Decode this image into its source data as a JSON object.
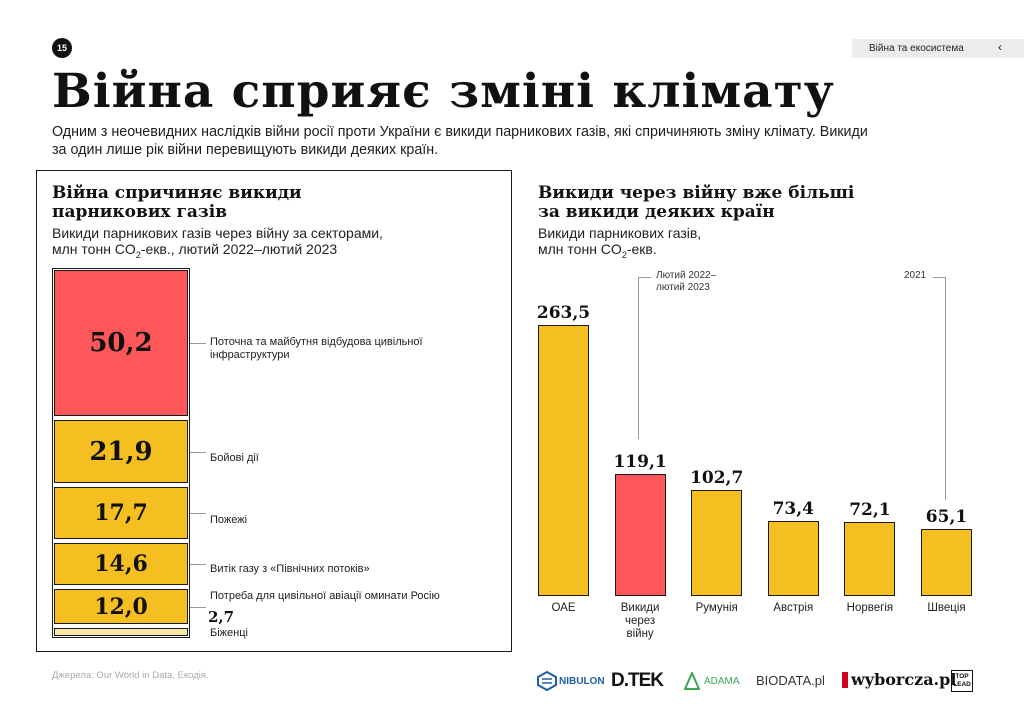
{
  "header": {
    "page_number": "15",
    "section_label": "Війна та екосистема",
    "section_icon": "chevron-left-icon",
    "title": "Війна сприяє зміні клімату",
    "intro": "Одним з неочевидних наслідків війни росії проти України є викиди парникових газів, які спричиняють зміну клімату. Викиди за один лише рік війни перевищують викиди деяких країн."
  },
  "left_panel": {
    "title_line1": "Війна спричиняє викиди",
    "title_line2": "парникових газів",
    "subtitle_line1": "Викиди парникових газів через війну за секторами,",
    "subtitle_pre": "млн тонн CO",
    "subtitle_sub": "2",
    "subtitle_post": "-екв., лютий 2022–лютий 2023"
  },
  "right_panel": {
    "title_line1": "Викиди через війну вже більші",
    "title_line2": "за викиди деяких країн",
    "subtitle_line1": "Викиди парникових газів,",
    "subtitle_pre": "млн тонн CO",
    "subtitle_sub": "2",
    "subtitle_post": "-екв.",
    "note_war_line1": "Лютий 2022–",
    "note_war_line2": "лютий 2023",
    "note_year": "2021"
  },
  "chart_data": [
    {
      "type": "bar",
      "stacked": true,
      "title": "Війна спричиняє викиди парникових газів",
      "subtitle": "Викиди парникових газів через війну за секторами, млн тонн CO2-екв., лютий 2022–лютий 2023",
      "categories": [
        "Поточна та майбутня відбудова цивільної інфраструктури",
        "Бойові дії",
        "Пожежі",
        "Витік газу з «Північних потоків»",
        "Потреба для цивільної авіації оминати Росію",
        "Біженці"
      ],
      "values": [
        50.2,
        21.9,
        17.7,
        14.6,
        12.0,
        2.7
      ],
      "labels": [
        "50,2",
        "21,9",
        "17,7",
        "14,6",
        "12,0",
        "2,7"
      ],
      "colors": [
        "#fd5759",
        "#f5bf22",
        "#f5bf22",
        "#f5bf22",
        "#f5bf22",
        "#f9e7a8"
      ]
    },
    {
      "type": "bar",
      "title": "Викиди через війну вже більші за викиди деяких країн",
      "subtitle": "Викиди парникових газів, млн тонн CO2-екв.",
      "categories": [
        "ОАЕ",
        "Викиди через війну",
        "Румунія",
        "Австрія",
        "Норвегія",
        "Швеція"
      ],
      "category_lines": [
        [
          "ОАЕ"
        ],
        [
          "Викиди",
          "через",
          "війну"
        ],
        [
          "Румунія"
        ],
        [
          "Австрія"
        ],
        [
          "Норвегія"
        ],
        [
          "Швеція"
        ]
      ],
      "values": [
        263.5,
        119.1,
        102.7,
        73.4,
        72.1,
        65.1
      ],
      "labels": [
        "263,5",
        "119,1",
        "102,7",
        "73,4",
        "72,1",
        "65,1"
      ],
      "colors": [
        "#f5bf22",
        "#fd5759",
        "#f5bf22",
        "#f5bf22",
        "#f5bf22",
        "#f5bf22"
      ],
      "ylim": [
        0,
        263.5
      ],
      "grid": false
    }
  ],
  "footer": {
    "source": "Джерела: Our World in Data, Екодія.",
    "logos": {
      "nibulon": "NIBULON",
      "dtek": "D.TEK",
      "adama": "ADAMA",
      "biodata": "BIODATA.pl",
      "wyborcza": "wyborcza.pl",
      "toplead_line1": "TOP",
      "toplead_line2": "LEAD"
    }
  }
}
